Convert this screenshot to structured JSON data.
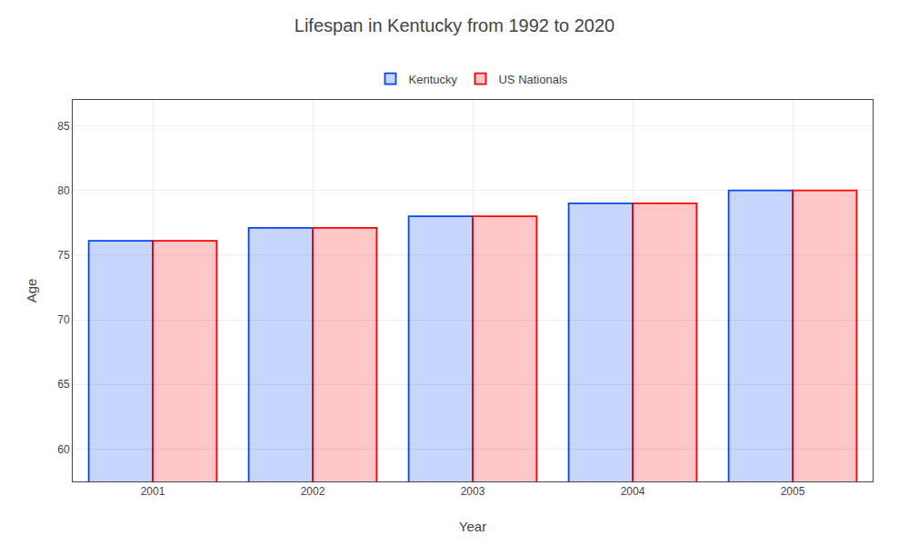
{
  "chart_data": {
    "type": "bar",
    "title": "Lifespan in Kentucky from 1992 to 2020",
    "xlabel": "Year",
    "ylabel": "Age",
    "categories": [
      "2001",
      "2002",
      "2003",
      "2004",
      "2005"
    ],
    "series": [
      {
        "name": "Kentucky",
        "color": "#0044ff",
        "values": [
          76.1,
          77.1,
          78.0,
          79.0,
          80.0
        ]
      },
      {
        "name": "US Nationals",
        "color": "#ff0000",
        "values": [
          76.1,
          77.1,
          78.0,
          79.0,
          80.0
        ]
      }
    ],
    "ylim": [
      57.5,
      87
    ],
    "yticks": [
      60,
      65,
      70,
      75,
      80,
      85
    ],
    "grid": true,
    "legend": "top"
  }
}
